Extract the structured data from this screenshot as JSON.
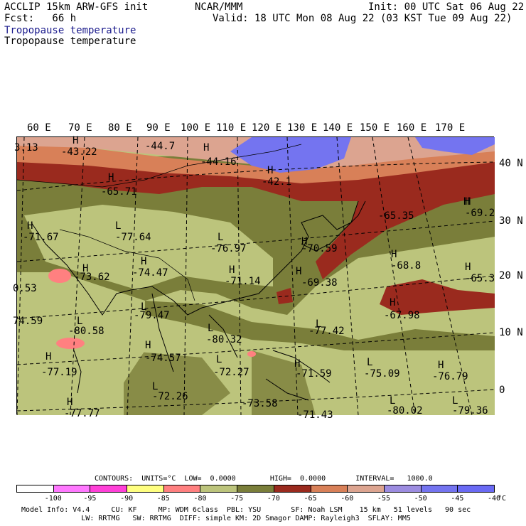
{
  "header": {
    "left1": "ACCLIP 15km ARW-GFS init",
    "left2": "Fcst:   66 h",
    "center": "NCAR/MMM",
    "right1": "Init: 00 UTC Sat 06 Aug 22",
    "right2": "Valid: 18 UTC Mon 08 Aug 22 (03 KST Tue 09 Aug 22)",
    "field_title_shaded": "Tropopause temperature",
    "field_title": "Tropopause temperature"
  },
  "map": {
    "lon_labels": [
      "60 E",
      "70 E",
      "80 E",
      "90 E",
      "100 E",
      "110 E",
      "120 E",
      "130 E",
      "140 E",
      "150 E",
      "160 E",
      "170 E"
    ],
    "lat_labels": [
      "40 N",
      "30 N",
      "20 N",
      "10 N",
      "0"
    ],
    "extrema": [
      {
        "t": "H"
      },
      {
        "t": "-43.22"
      },
      {
        "t": "-44.7"
      },
      {
        "t": "H"
      },
      {
        "t": "-44.16"
      },
      {
        "t": "H"
      },
      {
        "t": "-42.1"
      },
      {
        "t": "H"
      },
      {
        "t": "-65.71"
      },
      {
        "t": "H"
      },
      {
        "t": "-65.35"
      },
      {
        "t": "H"
      },
      {
        "t": "-69.2"
      },
      {
        "t": "H"
      },
      {
        "t": "-71.67"
      },
      {
        "t": "L"
      },
      {
        "t": "-77.64"
      },
      {
        "t": "L"
      },
      {
        "t": "-76.97"
      },
      {
        "t": "H"
      },
      {
        "t": "-70.59"
      },
      {
        "t": "H"
      },
      {
        "t": "-73.62"
      },
      {
        "t": "H"
      },
      {
        "t": "-74.47"
      },
      {
        "t": "H"
      },
      {
        "t": "-71.14"
      },
      {
        "t": "H"
      },
      {
        "t": "-69.38"
      },
      {
        "t": "H"
      },
      {
        "t": "-68.8"
      },
      {
        "t": "H"
      },
      {
        "t": "-65.3"
      },
      {
        "t": "L"
      },
      {
        "t": "-79.47"
      },
      {
        "t": "H"
      },
      {
        "t": "-67.98"
      },
      {
        "t": "L"
      },
      {
        "t": "-80.58"
      },
      {
        "t": "L"
      },
      {
        "t": "-80.32"
      },
      {
        "t": "L"
      },
      {
        "t": "-77.42"
      },
      {
        "t": "H"
      },
      {
        "t": "-74.57"
      },
      {
        "t": "H"
      },
      {
        "t": "-77.19"
      },
      {
        "t": "L"
      },
      {
        "t": "-72.27"
      },
      {
        "t": "H"
      },
      {
        "t": "-71.59"
      },
      {
        "t": "L"
      },
      {
        "t": "-75.09"
      },
      {
        "t": "H"
      },
      {
        "t": "-76.79"
      },
      {
        "t": "L"
      },
      {
        "t": "-72.26"
      },
      {
        "t": "H"
      },
      {
        "t": "-73.58"
      },
      {
        "t": "L"
      },
      {
        "t": "-80.02"
      },
      {
        "t": "L"
      },
      {
        "t": "-79.36"
      },
      {
        "t": "3.13"
      },
      {
        "t": "0.53"
      },
      {
        "t": "74.59"
      },
      {
        "t": "-77.77"
      },
      {
        "t": "-71.43"
      }
    ]
  },
  "contours": {
    "text": "CONTOURS:  UNITS=°C  LOW=  0.0000        HIGH=  0.0000       INTERVAL=   1000.0"
  },
  "colorbar": {
    "colors": [
      "#ffffff",
      "#ff78ff",
      "#ff40d8",
      "#ffff80",
      "#ff8080",
      "#bcc47c",
      "#7a7e3a",
      "#9a2a1e",
      "#d88058",
      "#dca490",
      "#9c8ce0",
      "#7474f0",
      "#6a6af4"
    ],
    "labels": [
      "-100",
      "-95",
      "-90",
      "-85",
      "-80",
      "-75",
      "-70",
      "-65",
      "-60",
      "-55",
      "-50",
      "-45",
      "-40",
      "°C"
    ]
  },
  "footer": {
    "line1": "Model Info: V4.4     CU: KF     MP: WDM 6class  PBL: YSU       SF: Noah LSM    15 km   51 levels   90 sec",
    "line2": "              LW: RRTMG   SW: RRTMG  DIFF: simple KM: 2D Smagor DAMP: Rayleigh3  SFLAY: MM5"
  }
}
